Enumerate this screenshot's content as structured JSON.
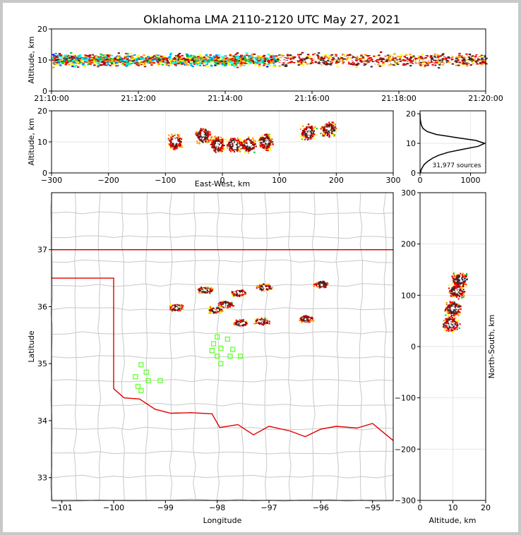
{
  "chart_data": {
    "title": "Oklahoma LMA 2110-2120 UTC May 27, 2021",
    "panels": {
      "time_height": {
        "type": "heatmap",
        "ylabel": "Altitude, km",
        "ylim": [
          0,
          20
        ],
        "yticks": [
          "0",
          "10",
          "20"
        ],
        "xticks": [
          "21:10:00",
          "21:12:00",
          "21:14:00",
          "21:16:00",
          "21:18:00",
          "21:20:00"
        ]
      },
      "ew_height": {
        "type": "heatmap",
        "xlabel": "East-West, km",
        "ylabel": "Altitude, km",
        "xlim": [
          -300,
          300
        ],
        "ylim": [
          0,
          20
        ],
        "xticks": [
          "−300",
          "−200",
          "−100",
          "0",
          "100",
          "200",
          "300"
        ],
        "yticks": [
          "0",
          "10",
          "20"
        ],
        "clusters": [
          {
            "x": -85,
            "z": 10
          },
          {
            "x": -35,
            "z": 12
          },
          {
            "x": -10,
            "z": 9
          },
          {
            "x": 20,
            "z": 9
          },
          {
            "x": 45,
            "z": 9
          },
          {
            "x": 75,
            "z": 10
          },
          {
            "x": 150,
            "z": 13
          },
          {
            "x": 185,
            "z": 14
          }
        ]
      },
      "histogram": {
        "type": "line",
        "annotation": "31,977 sources",
        "xticks": [
          "0",
          "1000"
        ],
        "yticks": [
          "0",
          "10",
          "20"
        ],
        "profile_alt_km": [
          0,
          1,
          2,
          3,
          4,
          5,
          6,
          7,
          8,
          9,
          10,
          11,
          12,
          13,
          14,
          15,
          16,
          17,
          18,
          19,
          20
        ],
        "profile_count": [
          10,
          20,
          50,
          90,
          160,
          250,
          370,
          560,
          850,
          1150,
          1280,
          1100,
          700,
          320,
          140,
          60,
          30,
          15,
          5,
          2,
          0
        ]
      },
      "map": {
        "type": "scatter",
        "xlabel": "Longitude",
        "ylabel": "Latitude",
        "xlim": [
          -101.2,
          -94.6
        ],
        "ylim": [
          32.6,
          38.0
        ],
        "xticks": [
          "−101",
          "−100",
          "−99",
          "−98",
          "−97",
          "−96",
          "−95"
        ],
        "yticks": [
          "33",
          "34",
          "35",
          "36",
          "37"
        ],
        "storms": [
          {
            "lon": -98.8,
            "lat": 36.0
          },
          {
            "lon": -98.25,
            "lat": 36.3
          },
          {
            "lon": -97.55,
            "lat": 35.72
          },
          {
            "lon": -97.15,
            "lat": 35.75
          },
          {
            "lon": -97.1,
            "lat": 36.35
          },
          {
            "lon": -97.6,
            "lat": 36.25
          },
          {
            "lon": -96.3,
            "lat": 35.8
          },
          {
            "lon": -96.0,
            "lat": 36.4
          },
          {
            "lon": -98.05,
            "lat": 35.95
          },
          {
            "lon": -97.85,
            "lat": 36.05
          }
        ],
        "stations": [
          {
            "lon": -99.47,
            "lat": 34.98
          },
          {
            "lon": -99.37,
            "lat": 34.85
          },
          {
            "lon": -99.58,
            "lat": 34.77
          },
          {
            "lon": -99.33,
            "lat": 34.7
          },
          {
            "lon": -99.53,
            "lat": 34.6
          },
          {
            "lon": -99.47,
            "lat": 34.53
          },
          {
            "lon": -99.1,
            "lat": 34.7
          },
          {
            "lon": -98.0,
            "lat": 35.47
          },
          {
            "lon": -98.07,
            "lat": 35.35
          },
          {
            "lon": -98.1,
            "lat": 35.23
          },
          {
            "lon": -97.93,
            "lat": 35.27
          },
          {
            "lon": -97.8,
            "lat": 35.43
          },
          {
            "lon": -97.7,
            "lat": 35.25
          },
          {
            "lon": -98.0,
            "lat": 35.13
          },
          {
            "lon": -97.75,
            "lat": 35.13
          },
          {
            "lon": -97.55,
            "lat": 35.13
          },
          {
            "lon": -97.93,
            "lat": 35.0
          }
        ]
      },
      "ns_height": {
        "type": "heatmap",
        "xlabel": "Altitude, km",
        "ylabel": "North-South, km",
        "xlim": [
          0,
          20
        ],
        "ylim": [
          -300,
          300
        ],
        "xticks": [
          "0",
          "10",
          "20"
        ],
        "yticks": [
          "300",
          "200",
          "100",
          "0",
          "−100",
          "−200",
          "−300"
        ]
      }
    }
  }
}
